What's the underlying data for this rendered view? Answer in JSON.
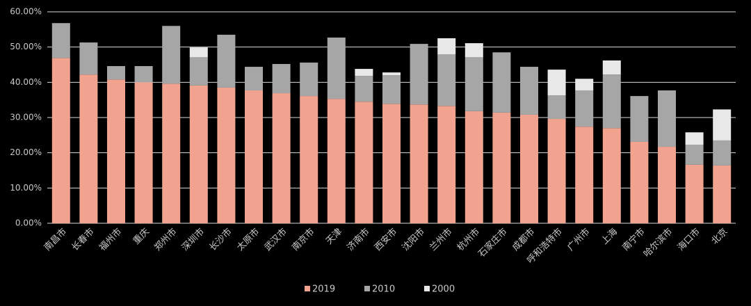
{
  "chart_data": {
    "type": "stacked_bar",
    "categories": [
      "南昌市",
      "长春市",
      "福州市",
      "重庆",
      "郑州市",
      "深圳市",
      "长沙市",
      "太原市",
      "武汉市",
      "南京市",
      "天津",
      "济南市",
      "西安市",
      "沈阳市",
      "兰州市",
      "杭州市",
      "石家庄市",
      "成都市",
      "呼和浩特市",
      "广州市",
      "上海",
      "南宁市",
      "哈尔滨市",
      "海口市",
      "北京"
    ],
    "series": [
      {
        "name": "2019",
        "color": "#f2a390",
        "values": [
          46.9,
          42.2,
          40.8,
          40.0,
          39.6,
          39.1,
          38.5,
          37.7,
          36.9,
          36.1,
          35.3,
          34.5,
          33.9,
          33.7,
          33.3,
          31.8,
          31.4,
          30.8,
          29.6,
          27.4,
          27.0,
          23.1,
          21.7,
          16.6,
          16.4
        ]
      },
      {
        "name": "2010",
        "color": "#a6a6a6",
        "values": [
          9.9,
          9.1,
          3.8,
          4.6,
          16.4,
          8.0,
          15.0,
          6.7,
          8.3,
          9.5,
          17.4,
          7.3,
          8.1,
          17.2,
          14.6,
          15.3,
          17.1,
          13.6,
          6.7,
          10.3,
          15.2,
          13.0,
          16.0,
          5.7,
          7.1
        ]
      },
      {
        "name": "2000",
        "color": "#e8e8e8",
        "values": [
          0,
          0,
          0,
          0,
          0,
          2.8,
          0,
          0,
          0,
          0,
          0,
          2.0,
          0.8,
          0,
          4.6,
          4.0,
          0,
          0,
          7.3,
          3.3,
          4.0,
          0,
          0,
          3.5,
          8.8
        ]
      }
    ],
    "ylim": [
      0,
      60
    ],
    "yticks": [
      {
        "value": 0,
        "label": "0.00%"
      },
      {
        "value": 10,
        "label": "10.00%"
      },
      {
        "value": 20,
        "label": "20.00%"
      },
      {
        "value": 30,
        "label": "30.00%"
      },
      {
        "value": 40,
        "label": "40.00%"
      },
      {
        "value": 50,
        "label": "50.00%"
      },
      {
        "value": 60,
        "label": "60.00%"
      }
    ],
    "grid": true,
    "legend": "bottom"
  }
}
